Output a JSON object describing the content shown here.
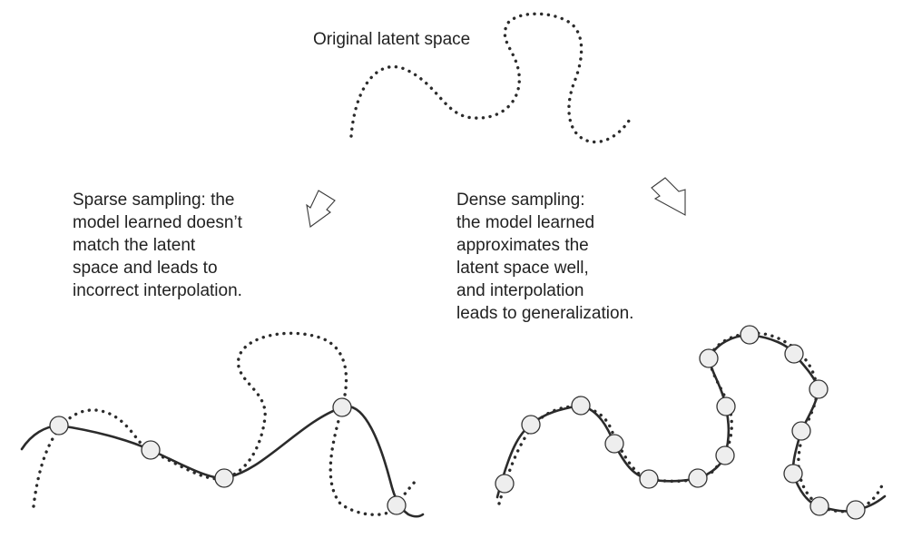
{
  "labels": {
    "original": "Original latent space",
    "sparse": [
      "Sparse sampling: the",
      "model learned doesn’t",
      "match the latent",
      "space and leads to",
      "incorrect interpolation."
    ],
    "dense": [
      "Dense sampling:",
      "the model learned",
      "approximates the",
      "latent space well,",
      "and interpolation",
      "leads to generalization."
    ]
  },
  "colors": {
    "curve": "#2b2b2b",
    "sample_fill": "#eeeeee",
    "arrow_fill": "#ffffff"
  }
}
